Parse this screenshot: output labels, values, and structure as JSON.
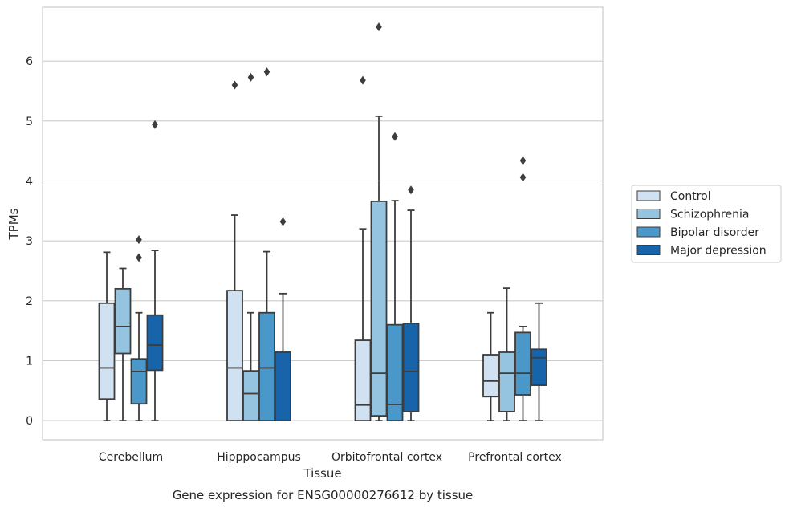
{
  "chart_data": {
    "type": "box",
    "title": "",
    "caption": "Gene expression for ENSG00000276612 by tissue",
    "xlabel": "Tissue",
    "ylabel": "TPMs",
    "ylim": [
      -0.32,
      6.9
    ],
    "yticks": [
      0,
      1,
      2,
      3,
      4,
      5,
      6
    ],
    "grid": "horizontal",
    "legend_position": "right",
    "categories": [
      "Cerebellum",
      "Hipppocampus",
      "Orbitofrontal cortex",
      "Prefrontal cortex"
    ],
    "series": [
      {
        "name": "Control",
        "color": "#d0e1f2",
        "boxes": [
          {
            "whislo": 0,
            "q1": 0.36,
            "med": 0.88,
            "q3": 1.96,
            "whishi": 2.81,
            "fliers": []
          },
          {
            "whislo": 0,
            "q1": 0,
            "med": 0.88,
            "q3": 2.17,
            "whishi": 3.43,
            "fliers": [
              5.6
            ]
          },
          {
            "whislo": 0,
            "q1": 0,
            "med": 0.26,
            "q3": 1.34,
            "whishi": 3.2,
            "fliers": [
              5.68
            ]
          },
          {
            "whislo": 0,
            "q1": 0.4,
            "med": 0.66,
            "q3": 1.1,
            "whishi": 1.8,
            "fliers": []
          }
        ]
      },
      {
        "name": "Schizophrenia",
        "color": "#94c4df",
        "boxes": [
          {
            "whislo": 0,
            "q1": 1.12,
            "med": 1.57,
            "q3": 2.2,
            "whishi": 2.54,
            "fliers": []
          },
          {
            "whislo": 0,
            "q1": 0,
            "med": 0.45,
            "q3": 0.83,
            "whishi": 1.8,
            "fliers": [
              5.73
            ]
          },
          {
            "whislo": 0,
            "q1": 0.08,
            "med": 0.79,
            "q3": 3.66,
            "whishi": 5.08,
            "fliers": [
              6.57
            ]
          },
          {
            "whislo": 0,
            "q1": 0.15,
            "med": 0.79,
            "q3": 1.14,
            "whishi": 2.21,
            "fliers": []
          }
        ]
      },
      {
        "name": "Bipolar disorder",
        "color": "#4a98c9",
        "boxes": [
          {
            "whislo": 0,
            "q1": 0.28,
            "med": 0.82,
            "q3": 1.03,
            "whishi": 1.8,
            "fliers": [
              2.72,
              3.02
            ]
          },
          {
            "whislo": 0,
            "q1": 0,
            "med": 0.88,
            "q3": 1.8,
            "whishi": 2.82,
            "fliers": [
              5.82
            ]
          },
          {
            "whislo": 0,
            "q1": 0,
            "med": 0.27,
            "q3": 1.6,
            "whishi": 3.67,
            "fliers": [
              4.74
            ]
          },
          {
            "whislo": 0,
            "q1": 0.43,
            "med": 0.79,
            "q3": 1.47,
            "whishi": 1.57,
            "fliers": [
              4.06,
              4.34
            ]
          }
        ]
      },
      {
        "name": "Major depression",
        "color": "#1764ab",
        "boxes": [
          {
            "whislo": 0,
            "q1": 0.84,
            "med": 1.26,
            "q3": 1.76,
            "whishi": 2.84,
            "fliers": [
              4.94
            ]
          },
          {
            "whislo": 0,
            "q1": 0,
            "med": 1.14,
            "q3": 1.14,
            "whishi": 2.12,
            "fliers": [
              3.32
            ]
          },
          {
            "whislo": 0,
            "q1": 0.15,
            "med": 0.82,
            "q3": 1.62,
            "whishi": 3.51,
            "fliers": [
              3.85
            ]
          },
          {
            "whislo": 0,
            "q1": 0.59,
            "med": 1.05,
            "q3": 1.19,
            "whishi": 1.96,
            "fliers": []
          }
        ]
      }
    ]
  }
}
